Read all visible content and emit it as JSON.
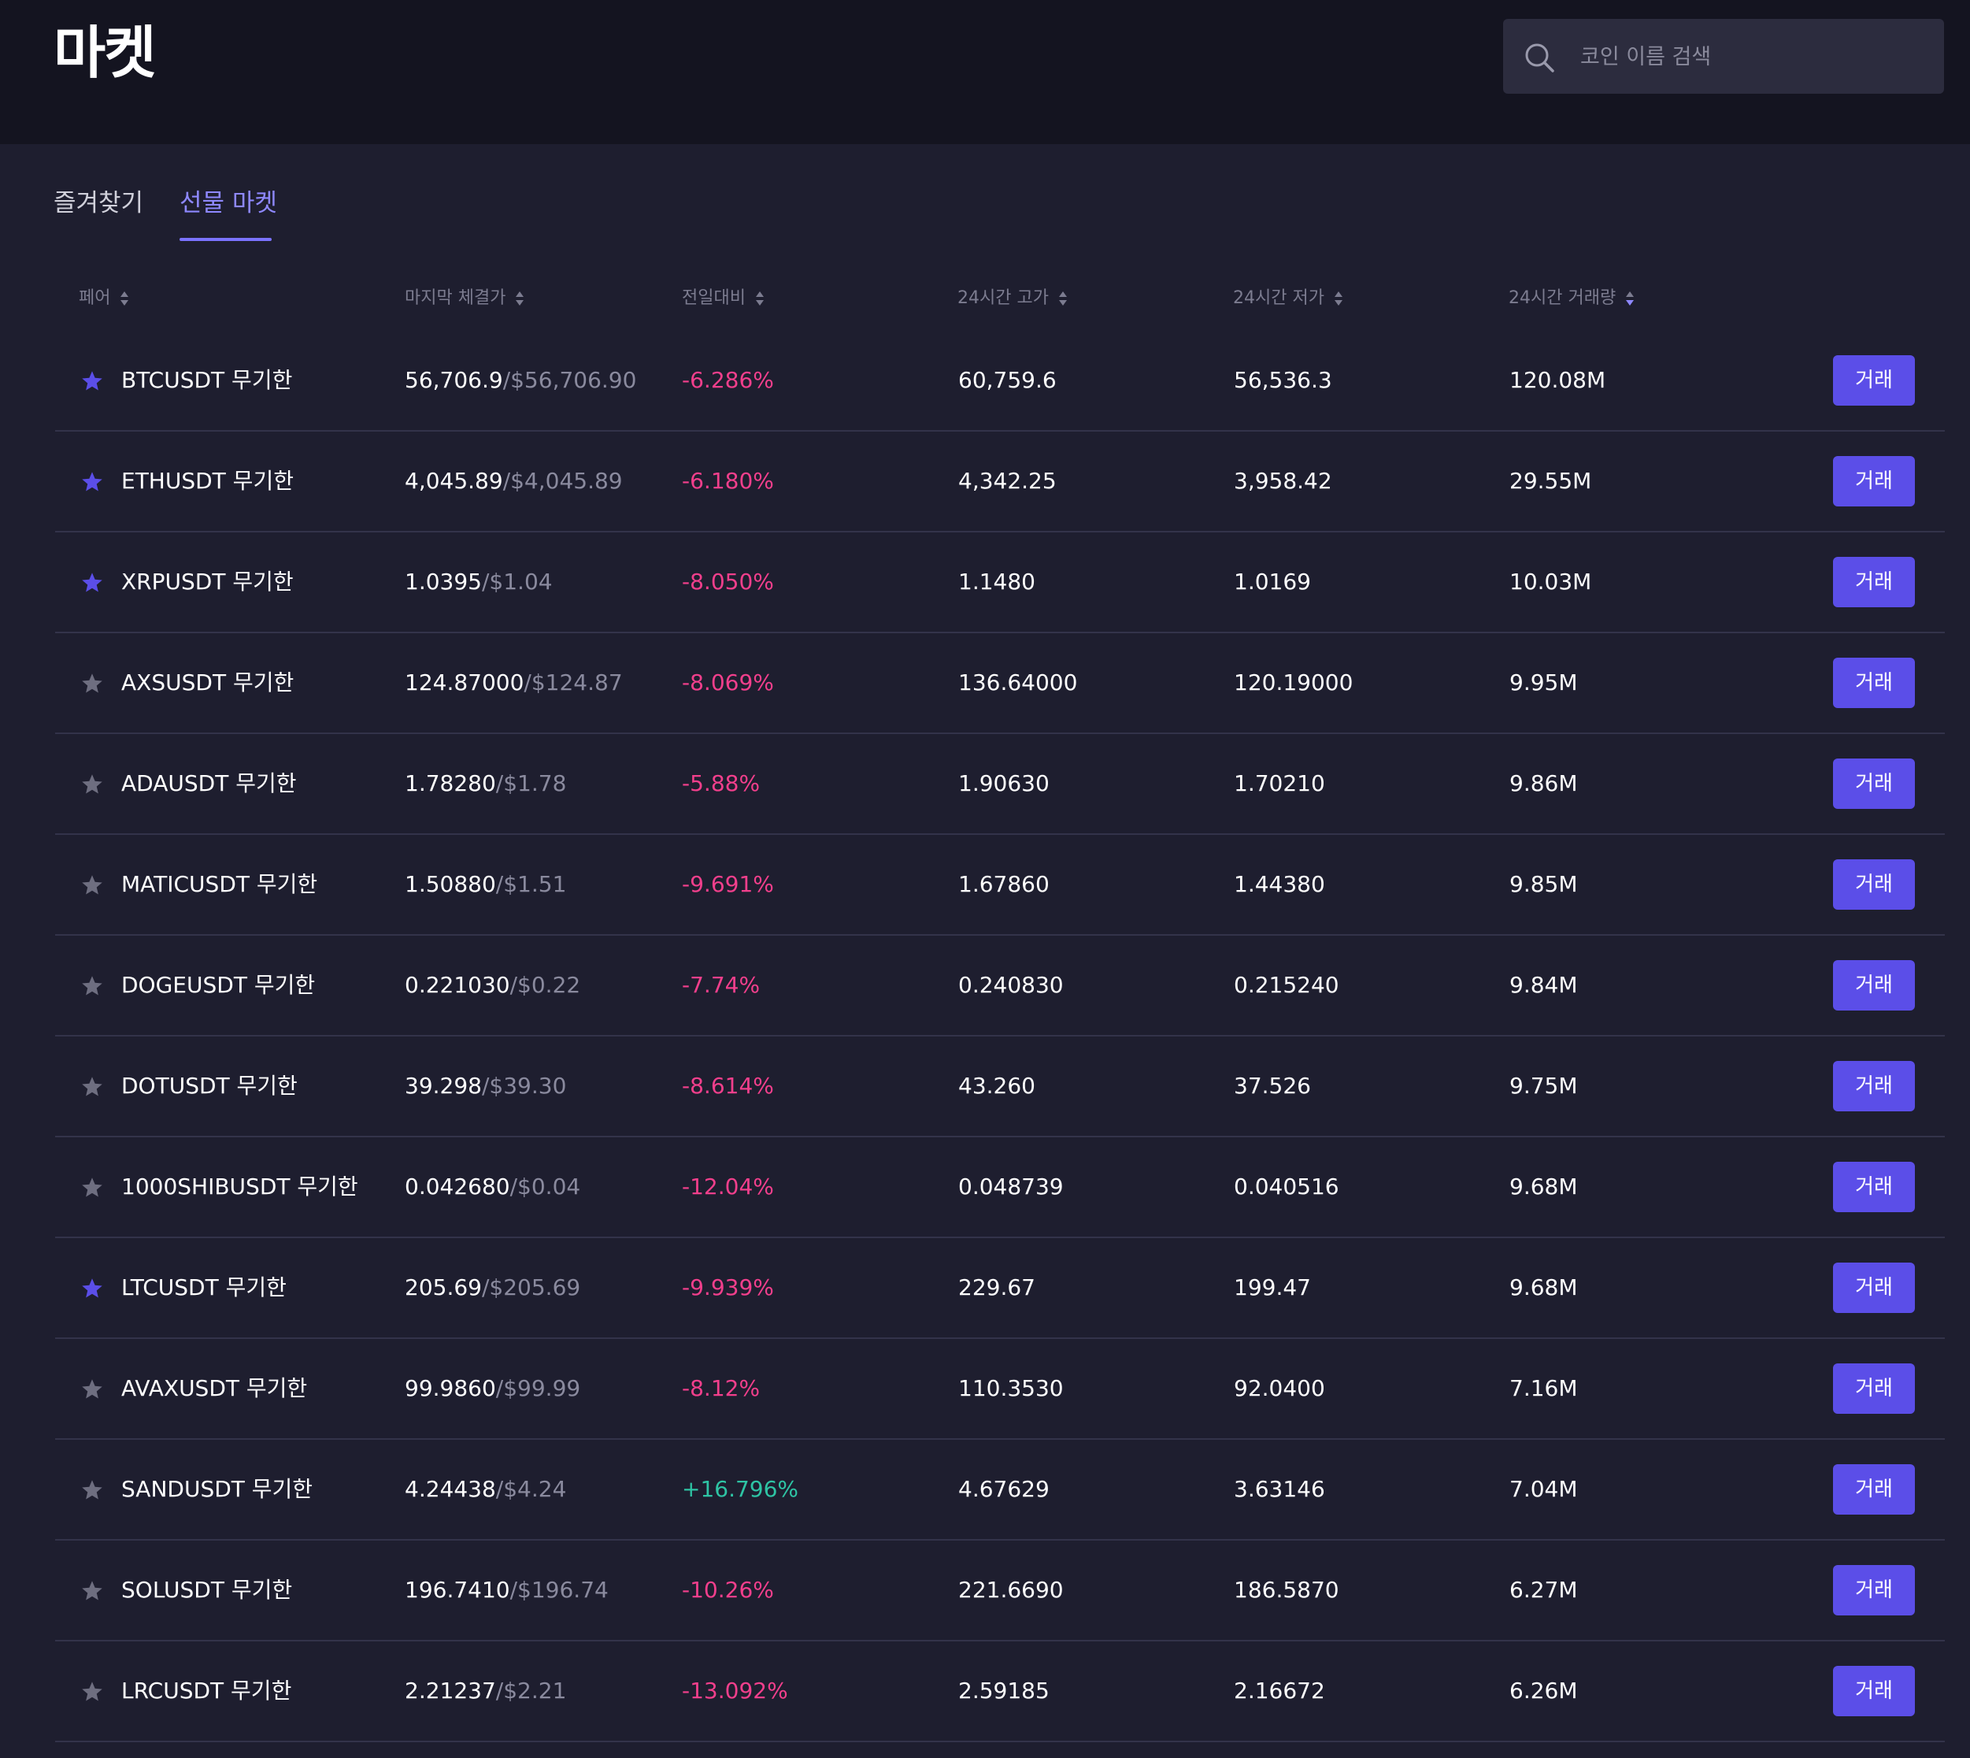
{
  "header": {
    "title": "마켓",
    "search": {
      "placeholder": "코인 이름 검색",
      "value": ""
    }
  },
  "tabs": [
    {
      "label": "즐겨찾기",
      "active": false
    },
    {
      "label": "선물 마켓",
      "active": true
    }
  ],
  "columns": {
    "pair": "페어",
    "last_price": "마지막 체결가",
    "change": "전일대비",
    "high": "24시간 고가",
    "low": "24시간 저가",
    "volume": "24시간 거래량"
  },
  "sorted_column": "volume",
  "colors": {
    "accent": "#5b4ee8",
    "negative": "#f23f8c",
    "positive": "#2ec4a4",
    "star_active": "#5b4ee8",
    "star_inactive": "#6e6e80"
  },
  "trade_label": "거래",
  "rows": [
    {
      "pair": "BTCUSDT 무기한",
      "favorite": true,
      "price": "56,706.9",
      "price_usd": "/$56,706.90",
      "change": "-6.286%",
      "direction": "neg",
      "high": "60,759.6",
      "low": "56,536.3",
      "volume": "120.08M"
    },
    {
      "pair": "ETHUSDT 무기한",
      "favorite": true,
      "price": "4,045.89",
      "price_usd": "/$4,045.89",
      "change": "-6.180%",
      "direction": "neg",
      "high": "4,342.25",
      "low": "3,958.42",
      "volume": "29.55M"
    },
    {
      "pair": "XRPUSDT 무기한",
      "favorite": true,
      "price": "1.0395",
      "price_usd": "/$1.04",
      "change": "-8.050%",
      "direction": "neg",
      "high": "1.1480",
      "low": "1.0169",
      "volume": "10.03M"
    },
    {
      "pair": "AXSUSDT 무기한",
      "favorite": false,
      "price": "124.87000",
      "price_usd": "/$124.87",
      "change": "-8.069%",
      "direction": "neg",
      "high": "136.64000",
      "low": "120.19000",
      "volume": "9.95M"
    },
    {
      "pair": "ADAUSDT 무기한",
      "favorite": false,
      "price": "1.78280",
      "price_usd": "/$1.78",
      "change": "-5.88%",
      "direction": "neg",
      "high": "1.90630",
      "low": "1.70210",
      "volume": "9.86M"
    },
    {
      "pair": "MATICUSDT 무기한",
      "favorite": false,
      "price": "1.50880",
      "price_usd": "/$1.51",
      "change": "-9.691%",
      "direction": "neg",
      "high": "1.67860",
      "low": "1.44380",
      "volume": "9.85M"
    },
    {
      "pair": "DOGEUSDT 무기한",
      "favorite": false,
      "price": "0.221030",
      "price_usd": "/$0.22",
      "change": "-7.74%",
      "direction": "neg",
      "high": "0.240830",
      "low": "0.215240",
      "volume": "9.84M"
    },
    {
      "pair": "DOTUSDT 무기한",
      "favorite": false,
      "price": "39.298",
      "price_usd": "/$39.30",
      "change": "-8.614%",
      "direction": "neg",
      "high": "43.260",
      "low": "37.526",
      "volume": "9.75M"
    },
    {
      "pair": "1000SHIBUSDT 무기한",
      "favorite": false,
      "price": "0.042680",
      "price_usd": "/$0.04",
      "change": "-12.04%",
      "direction": "neg",
      "high": "0.048739",
      "low": "0.040516",
      "volume": "9.68M"
    },
    {
      "pair": "LTCUSDT 무기한",
      "favorite": true,
      "price": "205.69",
      "price_usd": "/$205.69",
      "change": "-9.939%",
      "direction": "neg",
      "high": "229.67",
      "low": "199.47",
      "volume": "9.68M"
    },
    {
      "pair": "AVAXUSDT 무기한",
      "favorite": false,
      "price": "99.9860",
      "price_usd": "/$99.99",
      "change": "-8.12%",
      "direction": "neg",
      "high": "110.3530",
      "low": "92.0400",
      "volume": "7.16M"
    },
    {
      "pair": "SANDUSDT 무기한",
      "favorite": false,
      "price": "4.24438",
      "price_usd": "/$4.24",
      "change": "+16.796%",
      "direction": "pos",
      "high": "4.67629",
      "low": "3.63146",
      "volume": "7.04M"
    },
    {
      "pair": "SOLUSDT 무기한",
      "favorite": false,
      "price": "196.7410",
      "price_usd": "/$196.74",
      "change": "-10.26%",
      "direction": "neg",
      "high": "221.6690",
      "low": "186.5870",
      "volume": "6.27M"
    },
    {
      "pair": "LRCUSDT 무기한",
      "favorite": false,
      "price": "2.21237",
      "price_usd": "/$2.21",
      "change": "-13.092%",
      "direction": "neg",
      "high": "2.59185",
      "low": "2.16672",
      "volume": "6.26M"
    }
  ]
}
